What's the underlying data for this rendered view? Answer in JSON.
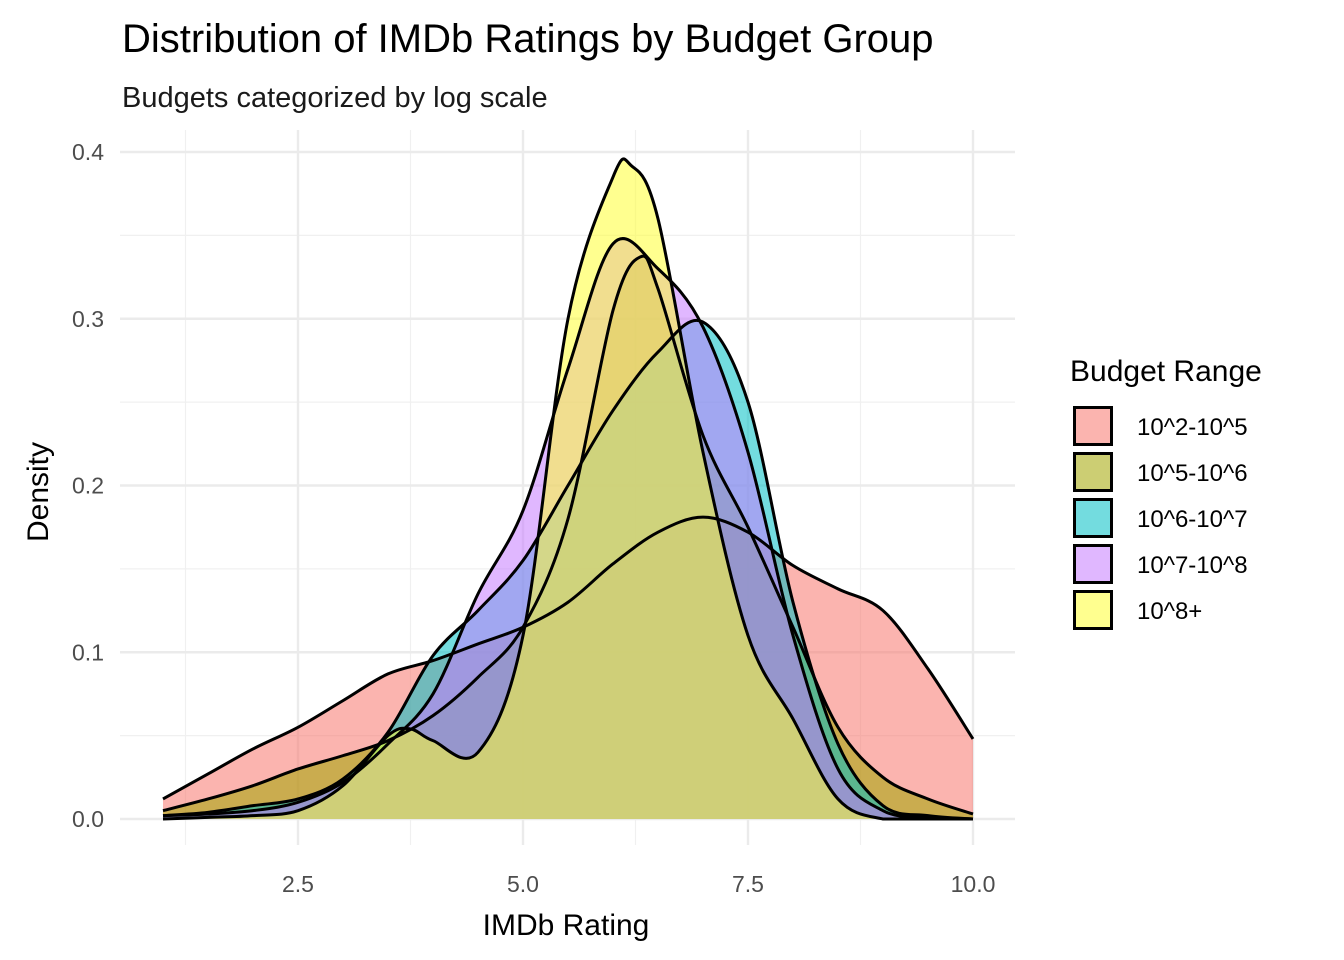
{
  "chart_data": {
    "type": "area",
    "title": "Distribution of IMDb Ratings by Budget Group",
    "subtitle": "Budgets categorized by log scale",
    "xlabel": "IMDb Rating",
    "ylabel": "Density",
    "xlim": [
      1.0,
      10.0
    ],
    "ylim": [
      0.0,
      0.4
    ],
    "x_ticks": [
      2.5,
      5.0,
      7.5,
      10.0
    ],
    "x_tick_labels": [
      "2.5",
      "5.0",
      "7.5",
      "10.0"
    ],
    "y_ticks": [
      0.0,
      0.1,
      0.2,
      0.3,
      0.4
    ],
    "y_tick_labels": [
      "0.0",
      "0.1",
      "0.2",
      "0.3",
      "0.4"
    ],
    "grid": true,
    "legend_title": "Budget Range",
    "legend_position": "right",
    "series": [
      {
        "name": "10^2-10^5",
        "color": "#F8766D",
        "x": [
          1.0,
          1.5,
          2.0,
          2.5,
          3.0,
          3.5,
          4.0,
          4.5,
          5.0,
          5.5,
          6.0,
          6.5,
          7.0,
          7.5,
          8.0,
          8.5,
          9.0,
          9.5,
          10.0
        ],
        "y": [
          0.012,
          0.027,
          0.042,
          0.055,
          0.071,
          0.087,
          0.095,
          0.105,
          0.115,
          0.13,
          0.153,
          0.172,
          0.181,
          0.172,
          0.152,
          0.138,
          0.125,
          0.09,
          0.048
        ]
      },
      {
        "name": "10^5-10^6",
        "color": "#A3A500",
        "x": [
          1.0,
          1.5,
          2.0,
          2.5,
          3.0,
          3.5,
          4.0,
          4.5,
          5.0,
          5.5,
          6.0,
          6.3,
          6.5,
          7.0,
          7.5,
          8.0,
          8.5,
          9.0,
          9.5,
          10.0
        ],
        "y": [
          0.005,
          0.012,
          0.02,
          0.03,
          0.038,
          0.047,
          0.062,
          0.085,
          0.115,
          0.18,
          0.305,
          0.337,
          0.318,
          0.23,
          0.175,
          0.115,
          0.055,
          0.025,
          0.012,
          0.003
        ]
      },
      {
        "name": "10^6-10^7",
        "color": "#00BFC4",
        "x": [
          1.0,
          1.5,
          2.0,
          2.5,
          3.0,
          3.5,
          4.0,
          4.5,
          5.0,
          5.5,
          6.0,
          6.5,
          7.0,
          7.5,
          8.0,
          8.5,
          9.0,
          9.5,
          10.0
        ],
        "y": [
          0.002,
          0.004,
          0.008,
          0.012,
          0.024,
          0.052,
          0.098,
          0.125,
          0.155,
          0.2,
          0.245,
          0.28,
          0.298,
          0.25,
          0.13,
          0.045,
          0.008,
          0.002,
          0.0
        ]
      },
      {
        "name": "10^7-10^8",
        "color": "#C77CFF",
        "x": [
          1.0,
          1.5,
          2.0,
          2.5,
          3.0,
          3.5,
          4.0,
          4.5,
          5.0,
          5.5,
          6.0,
          6.5,
          7.0,
          7.5,
          8.0,
          8.5,
          9.0,
          9.5,
          10.0
        ],
        "y": [
          0.002,
          0.003,
          0.005,
          0.01,
          0.022,
          0.045,
          0.075,
          0.135,
          0.185,
          0.27,
          0.345,
          0.33,
          0.295,
          0.22,
          0.11,
          0.03,
          0.005,
          0.001,
          0.0
        ]
      },
      {
        "name": "10^8+",
        "color": "#FFFF33",
        "x": [
          1.0,
          1.5,
          2.0,
          2.5,
          3.0,
          3.5,
          3.75,
          4.0,
          4.5,
          5.0,
          5.5,
          6.0,
          6.2,
          6.5,
          7.0,
          7.5,
          8.0,
          8.5,
          9.0,
          9.5,
          10.0
        ],
        "y": [
          0.0,
          0.001,
          0.002,
          0.005,
          0.02,
          0.05,
          0.054,
          0.047,
          0.04,
          0.11,
          0.3,
          0.385,
          0.392,
          0.36,
          0.22,
          0.11,
          0.06,
          0.012,
          0.0,
          0.0,
          0.0
        ]
      }
    ]
  }
}
